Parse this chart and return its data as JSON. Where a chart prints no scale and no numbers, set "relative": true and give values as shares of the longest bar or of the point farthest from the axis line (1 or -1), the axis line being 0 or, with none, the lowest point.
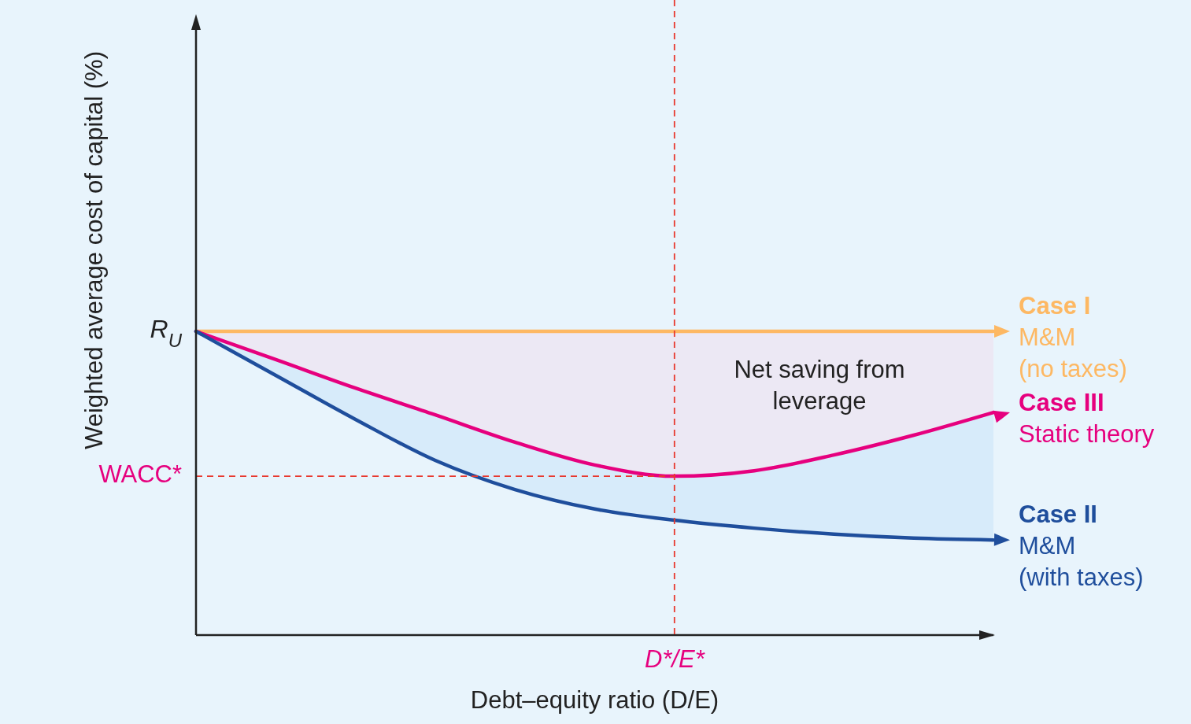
{
  "chart_data": {
    "type": "line",
    "relative": true,
    "xlabel": "Debt–equity ratio (D/E)",
    "ylabel": "Weighted average cost of capital (%)",
    "categories": [
      null,
      null,
      null,
      null,
      null,
      null,
      null,
      null,
      null,
      null,
      null
    ],
    "legend": "right",
    "marker": "none",
    "line_style": "solid",
    "series": [
      {
        "name": "Case I\nM&M\n(no taxes)",
        "color": "#fdb863",
        "values": [
          1,
          1,
          1,
          1,
          1,
          1,
          1,
          1,
          1,
          1,
          1
        ]
      },
      {
        "name": "Case III\nStatic theory",
        "color": "#e6007e",
        "values": [
          1.0,
          0.907,
          0.813,
          0.725,
          0.635,
          0.56,
          0.523,
          0.541,
          0.593,
          0.658,
          0.733
        ]
      },
      {
        "name": "Case II\nM&M\n(with taxes)",
        "color": "#1f4e9c",
        "values": [
          1.0,
          0.855,
          0.71,
          0.575,
          0.479,
          0.415,
          0.378,
          0.352,
          0.332,
          0.319,
          0.313
        ]
      }
    ],
    "ref_lines": [
      {
        "axis": "y",
        "value": 0.523,
        "label": "WACC*",
        "color": "#e8392f",
        "line_style": "dashed"
      }
    ],
    "annotations": [
      "R$_{U}$",
      "Net saving from\nleverage",
      "D*/E*"
    ]
  }
}
